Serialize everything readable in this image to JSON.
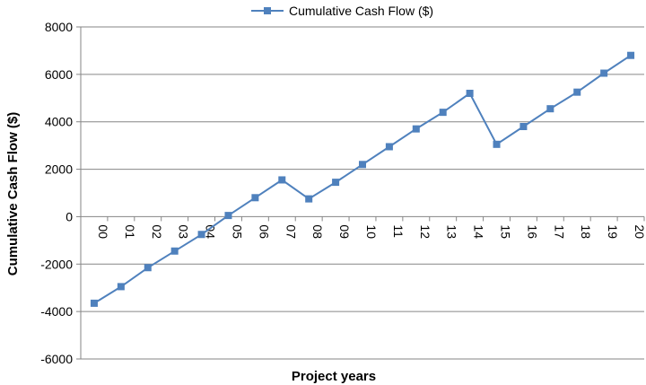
{
  "chart_data": {
    "type": "line",
    "xlabel": "Project years",
    "ylabel": "Cumulative Cash Flow ($)",
    "ylim": [
      -6000,
      8000
    ],
    "yticks": [
      8000,
      6000,
      4000,
      2000,
      0,
      -2000,
      -4000,
      -6000
    ],
    "ytick_labels": [
      "8000",
      "6000",
      "4000",
      "2000",
      "0",
      "-2000",
      "-4000",
      "-6000"
    ],
    "categories": [
      "00",
      "01",
      "02",
      "03",
      "04",
      "05",
      "06",
      "07",
      "08",
      "09",
      "10",
      "11",
      "12",
      "13",
      "14",
      "15",
      "16",
      "17",
      "18",
      "19",
      "20"
    ],
    "series": [
      {
        "name": "Cumulative Cash Flow ($)",
        "color": "#4f81bd",
        "marker": "square",
        "values": [
          -3650,
          -2950,
          -2150,
          -1450,
          -750,
          50,
          800,
          1550,
          750,
          1450,
          2200,
          2950,
          3700,
          4400,
          5200,
          3050,
          3800,
          4550,
          5250,
          6050,
          6800
        ]
      }
    ],
    "grid": {
      "horizontal": true,
      "vertical": false
    },
    "legend": "top-center",
    "x_tick_label_orientation": "vertical"
  }
}
